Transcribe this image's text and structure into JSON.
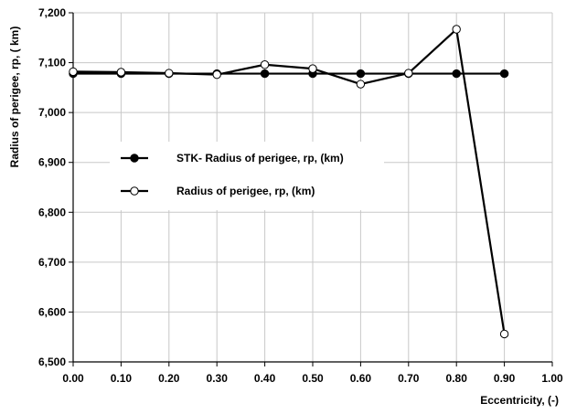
{
  "chart_data": {
    "type": "line",
    "title": "",
    "xlabel": "Eccentricity, (-)",
    "ylabel": "Radius of perigee, rp, ( km)",
    "xlim": [
      0,
      1
    ],
    "ylim": [
      6500,
      7200
    ],
    "x_ticks": [
      "0.00",
      "0.10",
      "0.20",
      "0.30",
      "0.40",
      "0.50",
      "0.60",
      "0.70",
      "0.80",
      "0.90",
      "1.00"
    ],
    "y_ticks": [
      "6,500",
      "6,600",
      "6,700",
      "6,800",
      "6,900",
      "7,000",
      "7,100",
      "7,200"
    ],
    "grid": true,
    "legend_position": "center-left",
    "series": [
      {
        "name": "STK- Radius of perigee, rp, (km)",
        "marker": "filled-circle",
        "color": "#000000",
        "x": [
          0.0,
          0.1,
          0.2,
          0.3,
          0.4,
          0.5,
          0.6,
          0.7,
          0.8,
          0.9
        ],
        "y": [
          7078,
          7078,
          7078,
          7078,
          7078,
          7078,
          7078,
          7078,
          7078,
          7078
        ]
      },
      {
        "name": "Radius of perigee, rp, (km)",
        "marker": "open-circle",
        "color": "#000000",
        "x": [
          0.0,
          0.1,
          0.2,
          0.3,
          0.4,
          0.5,
          0.6,
          0.7,
          0.8,
          0.9
        ],
        "y": [
          7082,
          7081,
          7079,
          7076,
          7096,
          7088,
          7057,
          7079,
          7167,
          6556
        ]
      }
    ]
  }
}
